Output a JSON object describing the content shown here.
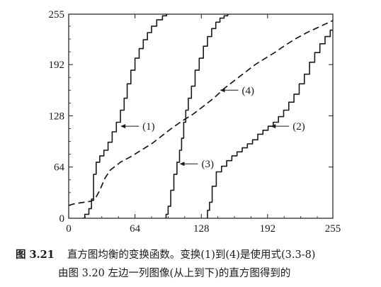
{
  "chart_data": {
    "type": "line",
    "title": "",
    "xlabel": "",
    "ylabel": "",
    "xlim": [
      0,
      255
    ],
    "ylim": [
      0,
      255
    ],
    "xticks": [
      "0",
      "64",
      "128",
      "192",
      "255"
    ],
    "yticks": [
      "0",
      "64",
      "128",
      "192",
      "255"
    ],
    "grid": false,
    "series": [
      {
        "name": "(1)",
        "style": "solid",
        "x": [
          13,
          18,
          21,
          23,
          25,
          28,
          32,
          36,
          40,
          44,
          48,
          52,
          55,
          58,
          62,
          66,
          70,
          74,
          78,
          82,
          88,
          93,
          96
        ],
        "y": [
          0,
          5,
          12,
          24,
          55,
          70,
          78,
          85,
          95,
          108,
          120,
          135,
          150,
          168,
          185,
          200,
          212,
          223,
          232,
          240,
          248,
          253,
          255
        ]
      },
      {
        "name": "(2)",
        "style": "solid",
        "x": [
          133,
          135,
          137,
          140,
          145,
          150,
          155,
          160,
          165,
          170,
          175,
          180,
          185,
          190,
          195,
          200,
          205,
          210,
          215,
          220,
          225,
          230,
          235,
          240,
          245,
          250,
          255
        ],
        "y": [
          0,
          10,
          20,
          40,
          58,
          65,
          72,
          78,
          83,
          88,
          93,
          98,
          105,
          110,
          115,
          120,
          127,
          135,
          145,
          155,
          168,
          180,
          195,
          207,
          218,
          227,
          235
        ]
      },
      {
        "name": "(3)",
        "style": "solid",
        "x": [
          93,
          95,
          97,
          100,
          103,
          106,
          108,
          110,
          112,
          114,
          117,
          120,
          124,
          128,
          132,
          136,
          140,
          144,
          148,
          152,
          155
        ],
        "y": [
          0,
          5,
          15,
          35,
          55,
          70,
          85,
          100,
          120,
          135,
          150,
          165,
          185,
          200,
          215,
          227,
          237,
          245,
          250,
          253,
          255
        ]
      },
      {
        "name": "(4)",
        "style": "dashed",
        "x": [
          0,
          5,
          10,
          15,
          20,
          25,
          30,
          35,
          40,
          50,
          60,
          70,
          80,
          90,
          100,
          110,
          120,
          130,
          140,
          150,
          160,
          170,
          180,
          190,
          200,
          210,
          220,
          230,
          240,
          250,
          255
        ],
        "y": [
          16,
          18,
          19,
          20,
          21,
          23,
          35,
          50,
          60,
          70,
          77,
          85,
          93,
          103,
          113,
          122,
          130,
          140,
          150,
          162,
          172,
          182,
          192,
          200,
          208,
          217,
          225,
          232,
          238,
          244,
          247
        ]
      }
    ],
    "annotations": [
      {
        "text": "(1)",
        "arrow_tip": [
          50,
          115
        ]
      },
      {
        "text": "(2)",
        "arrow_tip": [
          195,
          115
        ]
      },
      {
        "text": "(3)",
        "arrow_tip": [
          107,
          68
        ]
      },
      {
        "text": "(4)",
        "arrow_tip": [
          146,
          160
        ]
      }
    ]
  },
  "caption": {
    "figure_number": "图 3.21",
    "line1": "直方图均衡的变换函数。变换(1)到(4)是使用式(3.3-8)",
    "line2": "由图 3.20 左边一列图像(从上到下)的直方图得到的"
  },
  "colors": {
    "ink": "#1a1a1a",
    "background": "#ffffff"
  }
}
